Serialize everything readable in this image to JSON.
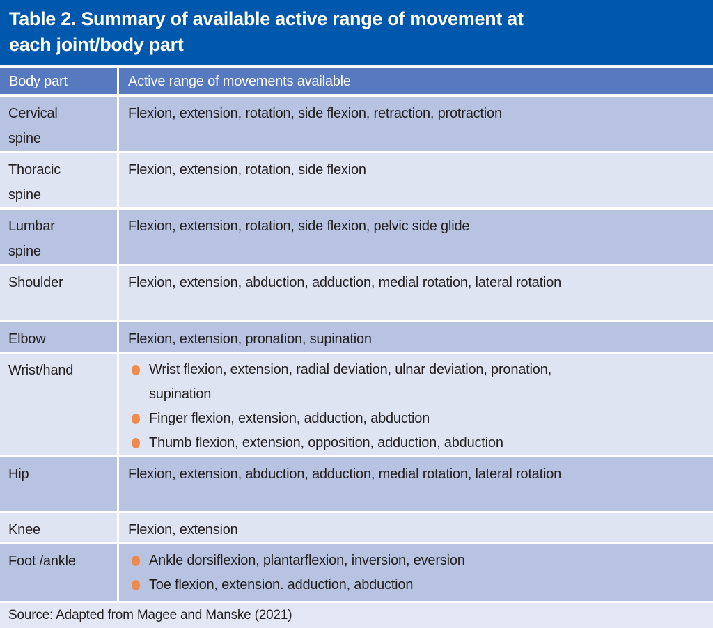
{
  "title": {
    "line1": "Table 2. Summary of available active range of movement at",
    "line2": "each joint/body part"
  },
  "header": {
    "col1": "Body part",
    "col2": "Active range of movements available"
  },
  "rows": [
    {
      "body_part": "Cervical spine",
      "movements": "Flexion, extension, rotation, side flexion, retraction, protraction"
    },
    {
      "body_part": "Thoracic spine",
      "movements": "Flexion, extension, rotation, side flexion"
    },
    {
      "body_part": "Lumbar spine",
      "movements": "Flexion, extension, rotation, side flexion, pelvic side glide"
    },
    {
      "body_part": "Shoulder",
      "movements": "Flexion, extension, abduction, adduction, medial rotation, lateral rotation"
    },
    {
      "body_part": "Elbow",
      "movements": "Flexion, extension, pronation, supination"
    },
    {
      "body_part": "Wrist/hand",
      "items": [
        "Wrist flexion, extension, radial deviation, ulnar deviation, pronation, supination",
        "Finger flexion, extension, adduction, abduction",
        "Thumb flexion, extension, opposition, adduction, abduction"
      ]
    },
    {
      "body_part": "Hip",
      "movements": "Flexion, extension, abduction, adduction, medial rotation, lateral rotation"
    },
    {
      "body_part": "Knee",
      "movements": "Flexion, extension"
    },
    {
      "body_part": "Foot /ankle",
      "items": [
        "Ankle dorsiflexion, plantarflexion, inversion, eversion",
        "Toe flexion, extension. adduction, abduction"
      ]
    }
  ],
  "footer": {
    "source": "Source: Adapted from Magee and Manske (2021)"
  },
  "colors": {
    "title_bg": "#0058AC",
    "header_bg": "#5679BF",
    "row_dark": "#B8C3E1",
    "row_light": "#DFE4F2",
    "footer_bg": "#E3E6F3",
    "bullet": "#F08A4C",
    "text": "#231F20",
    "title_text": "#FFFFFF"
  }
}
